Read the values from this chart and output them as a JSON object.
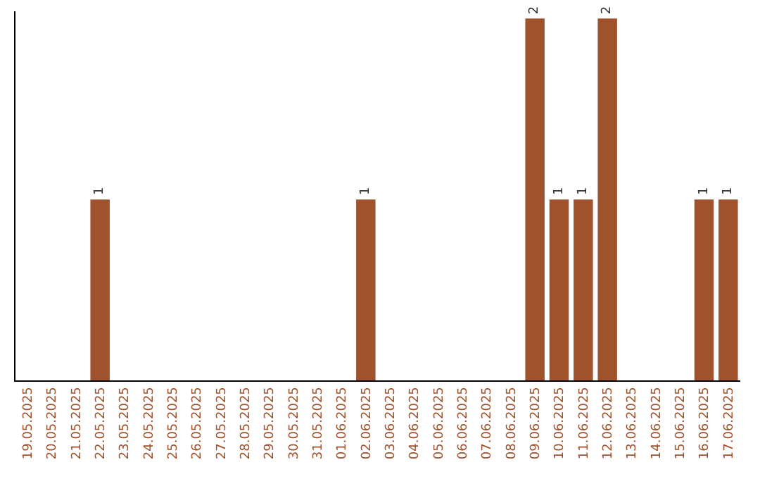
{
  "chart_data": {
    "type": "bar",
    "categories": [
      "19.05.2025",
      "20.05.2025",
      "21.05.2025",
      "22.05.2025",
      "23.05.2025",
      "24.05.2025",
      "25.05.2025",
      "26.05.2025",
      "27.05.2025",
      "28.05.2025",
      "29.05.2025",
      "30.05.2025",
      "31.05.2025",
      "01.06.2025",
      "02.06.2025",
      "03.06.2025",
      "04.06.2025",
      "05.06.2025",
      "06.06.2025",
      "07.06.2025",
      "08.06.2025",
      "09.06.2025",
      "10.06.2025",
      "11.06.2025",
      "12.06.2025",
      "13.06.2025",
      "14.06.2025",
      "15.06.2025",
      "16.06.2025",
      "17.06.2025"
    ],
    "values": [
      0,
      0,
      0,
      1,
      0,
      0,
      0,
      0,
      0,
      0,
      0,
      0,
      0,
      0,
      1,
      0,
      0,
      0,
      0,
      0,
      0,
      2,
      1,
      1,
      2,
      0,
      0,
      0,
      1,
      1
    ],
    "value_labels": [
      null,
      null,
      null,
      "1",
      null,
      null,
      null,
      null,
      null,
      null,
      null,
      null,
      null,
      null,
      "1",
      null,
      null,
      null,
      null,
      null,
      null,
      "2",
      "1",
      "1",
      "2",
      null,
      null,
      null,
      "1",
      "1"
    ],
    "color": "#a0522d"
  }
}
